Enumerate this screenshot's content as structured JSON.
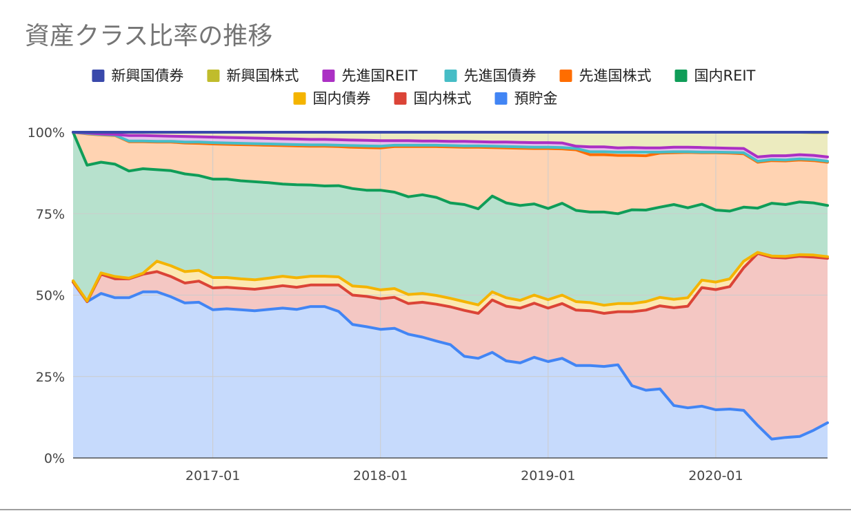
{
  "chart_data": {
    "type": "area",
    "stacked": true,
    "title": "資産クラス比率の推移",
    "xlabel": "",
    "ylabel": "",
    "ylim": [
      0,
      100
    ],
    "y_ticks": [
      "0%",
      "25%",
      "50%",
      "75%",
      "100%"
    ],
    "x_ticks": [
      "2017-01",
      "2018-01",
      "2019-01",
      "2020-01"
    ],
    "grid": true,
    "legend_position": "top",
    "x_start": "2016-03",
    "x_end": "2020-08",
    "stack_order": [
      "預貯金",
      "国内株式",
      "国内債券",
      "国内REIT",
      "先進国株式",
      "先進国債券",
      "先進国REIT",
      "新興国株式",
      "新興国債券"
    ],
    "legend_order": [
      "新興国債券",
      "新興国株式",
      "先進国REIT",
      "先進国債券",
      "先進国株式",
      "国内REIT",
      "国内債券",
      "国内株式",
      "預貯金"
    ],
    "colors": {
      "預貯金": "#4285f4",
      "国内株式": "#db4437",
      "国内債券": "#f4b400",
      "国内REIT": "#0f9d58",
      "先進国株式": "#ff6d00",
      "先進国債券": "#46bdc6",
      "先進国REIT": "#ab30c4",
      "新興国株式": "#c0bc2c",
      "新興国債券": "#3949ab"
    },
    "cumulative_top_percent": {
      "預貯金": [
        54,
        48,
        50.5,
        49.2,
        49.2,
        51,
        51,
        49.5,
        47.6,
        47.8,
        45.5,
        45.8,
        45.5,
        45.2,
        45.6,
        46,
        45.6,
        46.5,
        46.5,
        45,
        41,
        40.3,
        39.5,
        39.8,
        38,
        37.1,
        35.9,
        34.8,
        31.2,
        30.6,
        32.4,
        29.8,
        29.2,
        30.9,
        29.6,
        30.6,
        28.4,
        28.4,
        28.1,
        28.6,
        22.2,
        20.8,
        21.2,
        16.1,
        15.4,
        15.9,
        14.8,
        15,
        14.6,
        10,
        5.8,
        6.3,
        6.6,
        8.5,
        10.8
      ],
      "国内株式": [
        54,
        48,
        56.4,
        55,
        55,
        56.4,
        57.2,
        55.7,
        53.7,
        54.3,
        52.2,
        52.4,
        52.1,
        51.8,
        52.3,
        52.9,
        52.4,
        53.1,
        53.1,
        53.1,
        50,
        49.6,
        48.9,
        49.3,
        47.4,
        47.8,
        47.2,
        46.4,
        45.3,
        44.4,
        48.5,
        46.6,
        46,
        47.5,
        46,
        47.4,
        45.4,
        45.2,
        44.4,
        44.9,
        44.9,
        45.4,
        46.7,
        46.1,
        46.6,
        52.3,
        51.7,
        52.6,
        58.4,
        62.8,
        61.6,
        61.4,
        61.9,
        61.7,
        61.3
      ],
      "国内債券": [
        54.4,
        48.2,
        56.8,
        55.7,
        55.2,
        56.7,
        60.4,
        59,
        57.2,
        57.6,
        55.4,
        55.4,
        55,
        54.7,
        55.2,
        55.8,
        55.3,
        55.8,
        55.8,
        55.6,
        52.8,
        52.5,
        51.6,
        52,
        50.2,
        50.5,
        49.9,
        49,
        48,
        47,
        51,
        49.2,
        48.4,
        50,
        48.6,
        50,
        48,
        47.7,
        46.9,
        47.4,
        47.4,
        48,
        49.3,
        48.7,
        49.2,
        54.6,
        54,
        55,
        60.4,
        63.1,
        62,
        61.9,
        62.4,
        62.3,
        61.8
      ],
      "国内REIT": [
        100,
        89.9,
        90.8,
        90.2,
        88.1,
        88.8,
        88.5,
        88.2,
        87.2,
        86.7,
        85.6,
        85.6,
        85.1,
        84.8,
        84.5,
        84.1,
        83.9,
        83.8,
        83.5,
        83.6,
        82.7,
        82.2,
        82.2,
        81.6,
        80.2,
        80.8,
        80,
        78.3,
        77.8,
        76.5,
        80.4,
        78.3,
        77.5,
        78,
        76.6,
        78.2,
        76,
        75.5,
        75.5,
        75,
        76.2,
        76.1,
        77,
        77.8,
        76.8,
        77.9,
        76.1,
        75.8,
        77,
        76.7,
        78.2,
        77.8,
        78.6,
        78.3,
        77.5
      ],
      "先進国株式": [
        100,
        99.5,
        99.2,
        99,
        97.1,
        97.1,
        97,
        97,
        96.7,
        96.6,
        96.4,
        96.3,
        96.2,
        96.1,
        96,
        95.9,
        95.8,
        95.7,
        95.7,
        95.6,
        95.4,
        95.3,
        95.2,
        95.6,
        95.6,
        95.6,
        95.6,
        95.5,
        95.4,
        95.4,
        95.3,
        95.2,
        95.1,
        95,
        95,
        94.9,
        94.6,
        93.1,
        93.1,
        92.9,
        92.9,
        92.8,
        93.6,
        93.7,
        93.8,
        93.7,
        93.7,
        93.6,
        93.4,
        90.8,
        91.3,
        91.2,
        91.5,
        91.3,
        90.8
      ],
      "先進国債券": [
        100,
        99.6,
        99.3,
        99.1,
        97.3,
        97.3,
        97.2,
        97.2,
        97,
        97,
        96.8,
        96.7,
        96.6,
        96.5,
        96.4,
        96.3,
        96.2,
        96.1,
        96.1,
        96,
        95.9,
        95.8,
        95.7,
        96,
        96,
        96,
        96,
        95.9,
        95.8,
        95.8,
        95.7,
        95.6,
        95.5,
        95.4,
        95.4,
        95.3,
        95,
        94,
        94,
        93.9,
        93.9,
        93.9,
        93.9,
        94,
        94,
        93.9,
        93.9,
        93.8,
        93.7,
        91.1,
        91.6,
        91.5,
        91.8,
        91.6,
        91.1
      ],
      "先進国REIT": [
        100,
        99.8,
        99.5,
        99.3,
        99,
        99,
        98.9,
        98.8,
        98.7,
        98.6,
        98.5,
        98.4,
        98.3,
        98.2,
        98.1,
        98,
        97.9,
        97.8,
        97.8,
        97.7,
        97.6,
        97.5,
        97.4,
        97.4,
        97.4,
        97.3,
        97.3,
        97.2,
        97.2,
        97.1,
        97,
        97,
        96.9,
        96.8,
        96.8,
        96.7,
        95.7,
        95.5,
        95.5,
        95.2,
        95.3,
        95.2,
        95.2,
        95.4,
        95.4,
        95.3,
        95.2,
        95.1,
        95,
        92.4,
        92.8,
        92.8,
        93.1,
        92.9,
        92.4
      ],
      "新興国株式": [
        100,
        100,
        100,
        100,
        100,
        100,
        100,
        100,
        100,
        100,
        100,
        100,
        100,
        100,
        100,
        100,
        100,
        100,
        100,
        100,
        100,
        100,
        100,
        100,
        100,
        100,
        100,
        100,
        100,
        100,
        100,
        100,
        100,
        100,
        100,
        100,
        100,
        100,
        100,
        100,
        100,
        100,
        100,
        100,
        100,
        100,
        100,
        100,
        100,
        100,
        100,
        100,
        100,
        99.9,
        99.9
      ],
      "新興国債券": [
        100,
        100,
        100,
        100,
        100,
        100,
        100,
        100,
        100,
        100,
        100,
        100,
        100,
        100,
        100,
        100,
        100,
        100,
        100,
        100,
        100,
        100,
        100,
        100,
        100,
        100,
        100,
        100,
        100,
        100,
        100,
        100,
        100,
        100,
        100,
        100,
        100,
        100,
        100,
        100,
        100,
        100,
        100,
        100,
        100,
        100,
        100,
        100,
        100,
        100,
        100,
        100,
        100,
        100,
        100
      ]
    }
  }
}
